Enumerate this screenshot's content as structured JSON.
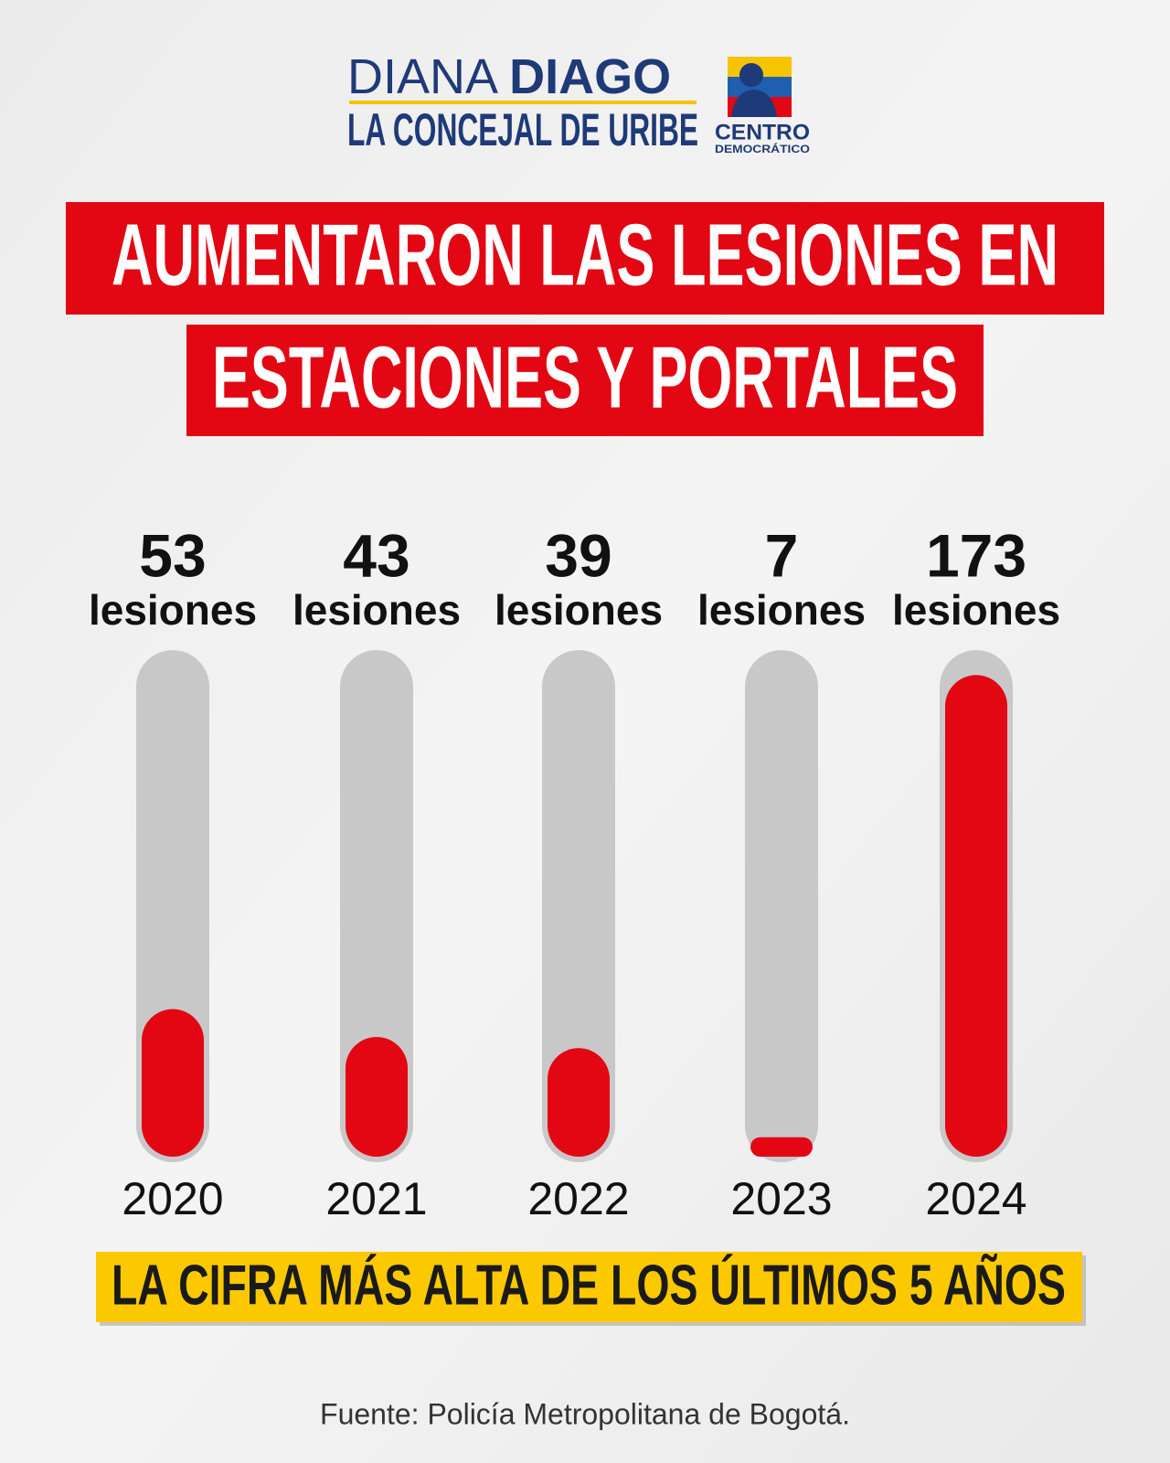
{
  "header": {
    "name_light": "DIANA",
    "name_bold": "DIAGO",
    "tagline": "LA CONCEJAL DE URIBE",
    "party_line1": "CENTRO",
    "party_line2": "DEMOCRÁTICO"
  },
  "chart_data": {
    "type": "bar",
    "title_lines": [
      "AUMENTARON LAS LESIONES EN",
      "ESTACIONES Y PORTALES"
    ],
    "categories": [
      "2020",
      "2021",
      "2022",
      "2023",
      "2024"
    ],
    "values": [
      53,
      43,
      39,
      7,
      173
    ],
    "value_unit": "lesiones",
    "color": "#e30613",
    "track_color": "#c8c8c8",
    "ylim": [
      0,
      180
    ]
  },
  "banner": "LA CIFRA MÁS ALTA DE LOS ÚLTIMOS 5 AÑOS",
  "source": "Fuente: Policía Metropolitana de Bogotá."
}
